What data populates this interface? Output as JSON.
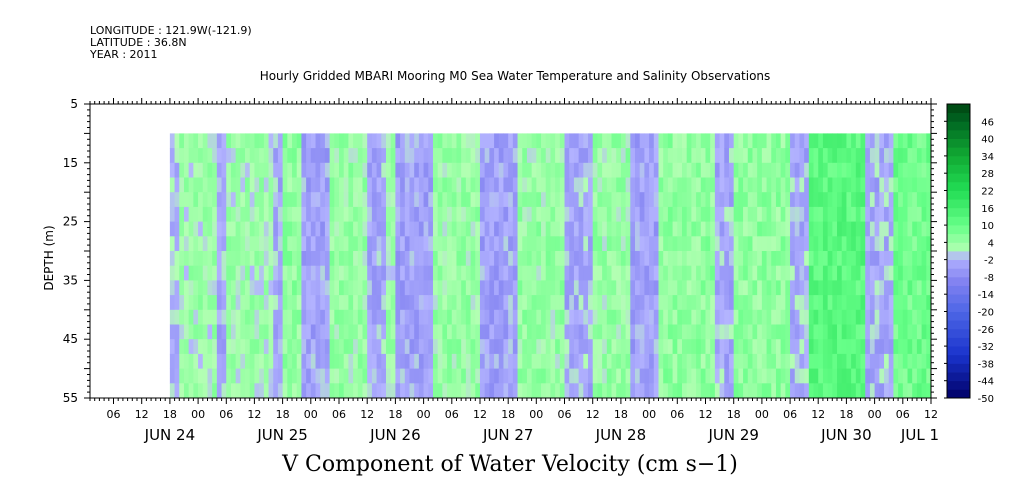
{
  "header": {
    "longitude": "LONGITUDE : 121.9W(-121.9)",
    "latitude": "LATITUDE : 36.8N",
    "year": "YEAR : 2011"
  },
  "title": "Hourly Gridded MBARI Mooring M0 Sea Water Temperature and Salinity Observations",
  "footer": "V Component of Water Velocity (cm s−1)",
  "chart_data": {
    "type": "heatmap",
    "title": "Hourly Gridded MBARI Mooring M0 Sea Water Temperature and Salinity Observations",
    "xlabel": "",
    "ylabel": "DEPTH (m)",
    "colorbar_label": "V Component of Water Velocity (cm s−1)",
    "x_range": [
      "2011-06-23 19:00",
      "2011-07-01 06:00"
    ],
    "data_start": "2011-06-24 12:00",
    "data_end": "2011-07-01 06:00",
    "y_range": [
      5,
      55
    ],
    "y_inverted": true,
    "data_depth_range": [
      10,
      55
    ],
    "y_ticks": [
      5,
      15,
      25,
      35,
      45,
      55
    ],
    "x_hour_ticks": [
      "06",
      "12",
      "18",
      "00",
      "06",
      "12",
      "18",
      "00",
      "06",
      "12",
      "18",
      "00",
      "06",
      "12",
      "18",
      "00",
      "06",
      "12",
      "18",
      "00",
      "06",
      "12",
      "18",
      "00",
      "06",
      "12",
      "18",
      "00",
      "06",
      "12",
      "18",
      "00"
    ],
    "x_date_labels": [
      "JUN 24",
      "JUN 25",
      "JUN 26",
      "JUN 27",
      "JUN 28",
      "JUN 29",
      "JUN 30",
      "JUL 1"
    ],
    "colorbar_ticks": [
      46,
      40,
      34,
      28,
      22,
      16,
      10,
      4,
      -2,
      -8,
      -14,
      -20,
      -26,
      -32,
      -38,
      -44,
      -50
    ],
    "colorbar_range": [
      -50,
      52
    ],
    "colorbar_step": 3,
    "colormap_anchors": [
      {
        "value": -50,
        "color": "#000066"
      },
      {
        "value": -35,
        "color": "#1a33cc"
      },
      {
        "value": -20,
        "color": "#4d66e6"
      },
      {
        "value": -10,
        "color": "#8080f0"
      },
      {
        "value": -1,
        "color": "#b3b3ff"
      },
      {
        "value": 1,
        "color": "#b3ffb3"
      },
      {
        "value": 10,
        "color": "#66ff88"
      },
      {
        "value": 22,
        "color": "#22dd55"
      },
      {
        "value": 34,
        "color": "#11aa33"
      },
      {
        "value": 46,
        "color": "#006622"
      },
      {
        "value": 52,
        "color": "#004411"
      }
    ],
    "field_bands": [
      {
        "start": "06-24 12:00",
        "end": "06-24 14:00",
        "v": -2
      },
      {
        "start": "06-24 14:00",
        "end": "06-24 22:00",
        "v": 3
      },
      {
        "start": "06-24 22:00",
        "end": "06-25 00:00",
        "v": -3
      },
      {
        "start": "06-25 00:00",
        "end": "06-25 10:00",
        "v": 3
      },
      {
        "start": "06-25 10:00",
        "end": "06-25 12:00",
        "v": -3
      },
      {
        "start": "06-25 12:00",
        "end": "06-25 16:00",
        "v": 5
      },
      {
        "start": "06-25 16:00",
        "end": "06-25 22:00",
        "v": -4
      },
      {
        "start": "06-25 22:00",
        "end": "06-26 06:00",
        "v": 4
      },
      {
        "start": "06-26 06:00",
        "end": "06-26 10:00",
        "v": -3
      },
      {
        "start": "06-26 10:00",
        "end": "06-26 12:00",
        "v": 3
      },
      {
        "start": "06-26 12:00",
        "end": "06-26 20:00",
        "v": -4
      },
      {
        "start": "06-26 20:00",
        "end": "06-27 06:00",
        "v": 4
      },
      {
        "start": "06-27 06:00",
        "end": "06-27 14:00",
        "v": -4
      },
      {
        "start": "06-27 14:00",
        "end": "06-28 00:00",
        "v": 4
      },
      {
        "start": "06-28 00:00",
        "end": "06-28 06:00",
        "v": -3
      },
      {
        "start": "06-28 06:00",
        "end": "06-28 14:00",
        "v": 4
      },
      {
        "start": "06-28 14:00",
        "end": "06-28 20:00",
        "v": -4
      },
      {
        "start": "06-28 20:00",
        "end": "06-29 08:00",
        "v": 5
      },
      {
        "start": "06-29 08:00",
        "end": "06-29 12:00",
        "v": -3
      },
      {
        "start": "06-29 12:00",
        "end": "06-30 00:00",
        "v": 5
      },
      {
        "start": "06-30 00:00",
        "end": "06-30 04:00",
        "v": -3
      },
      {
        "start": "06-30 04:00",
        "end": "06-30 16:00",
        "v": 12
      },
      {
        "start": "06-30 16:00",
        "end": "06-30 22:00",
        "v": -3
      },
      {
        "start": "06-30 22:00",
        "end": "07-01 06:00",
        "v": 9
      }
    ]
  }
}
